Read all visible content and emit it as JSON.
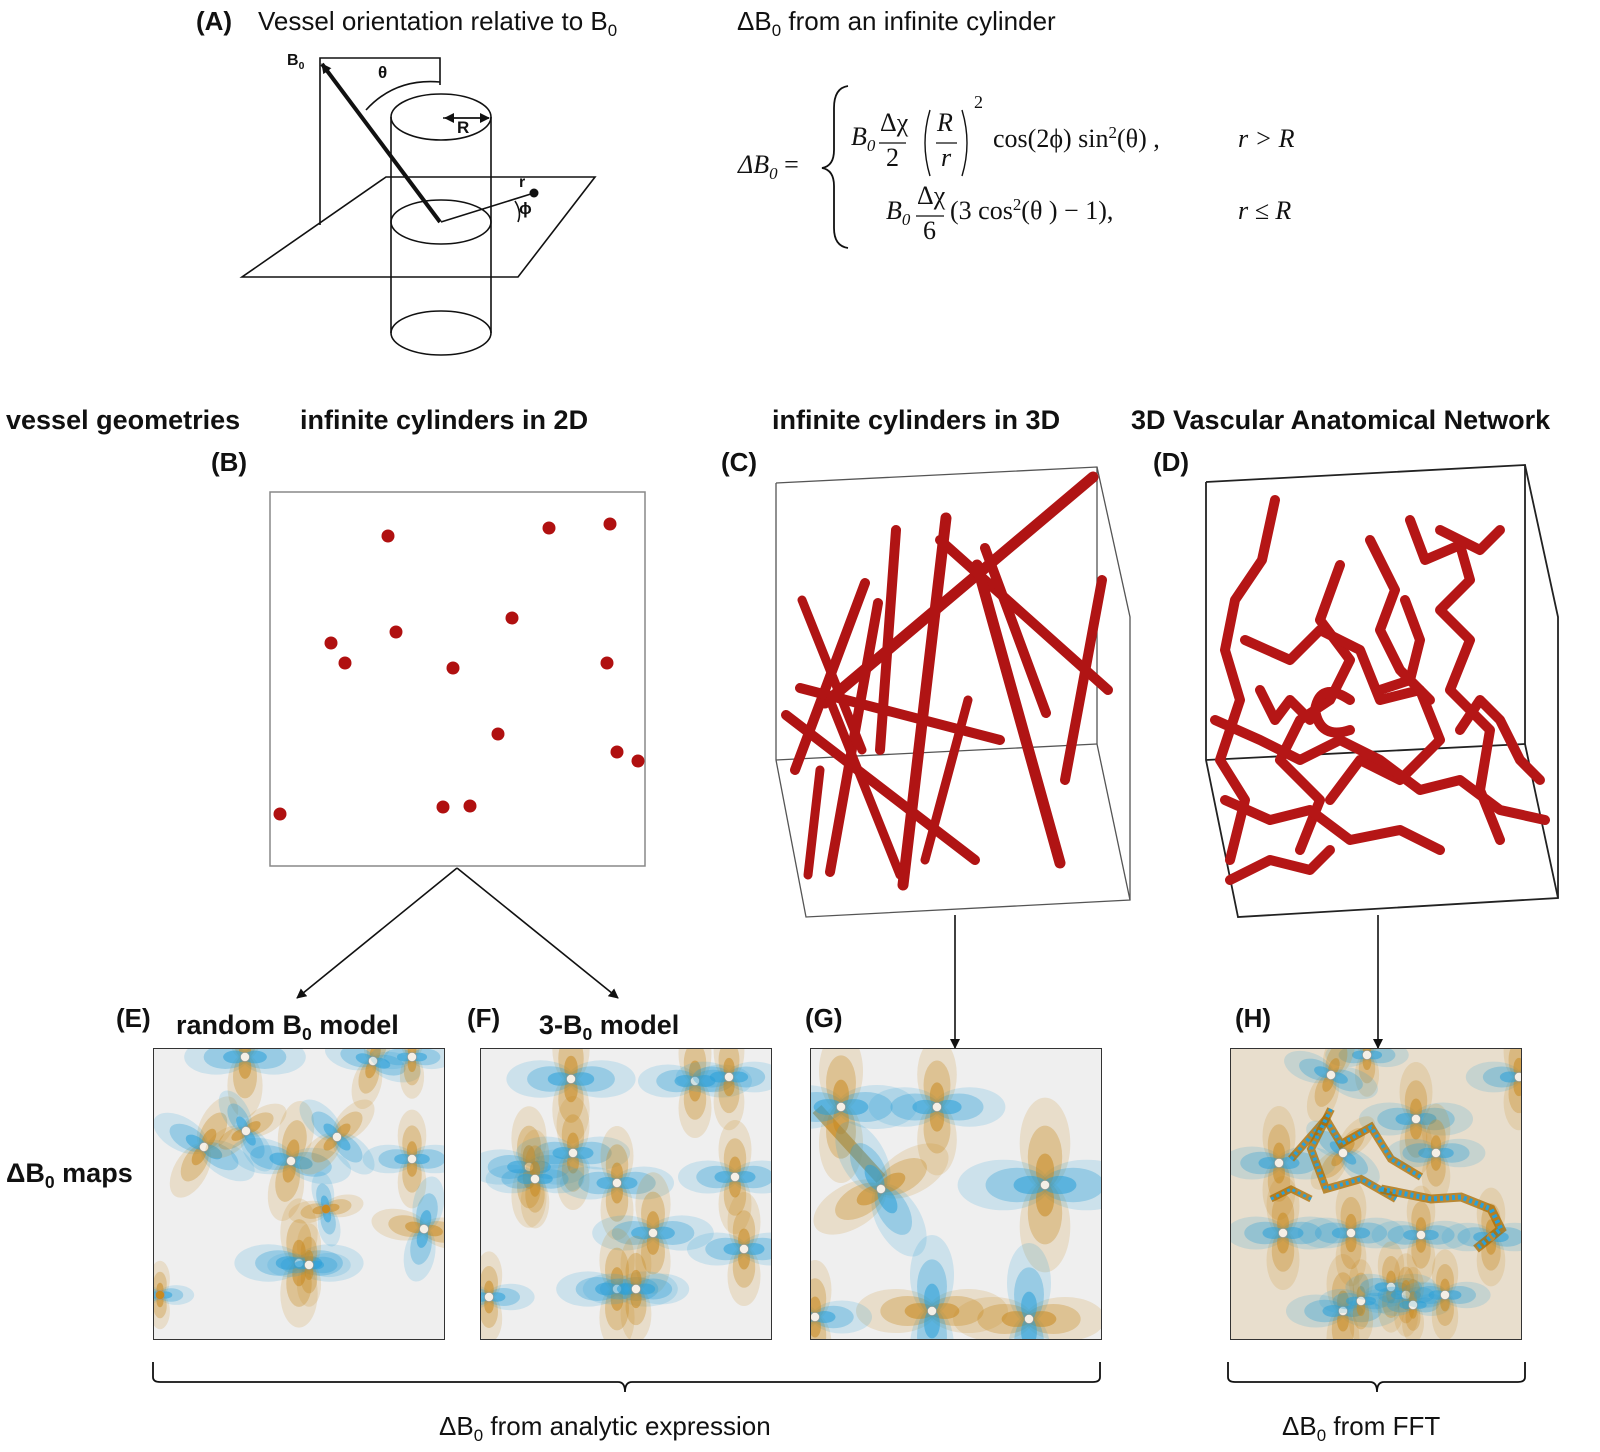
{
  "panelA": {
    "letter": "(A)",
    "title_left": "Vessel orientation relative to B",
    "title_left_sub": "0",
    "title_right": "ΔB",
    "title_right_sub": "0",
    "title_right_tail": " from an infinite cylinder",
    "diagram_labels": {
      "B0": "B",
      "B0_sub": "0",
      "theta": "θ",
      "R": "R",
      "r": "r",
      "phi": "ϕ"
    }
  },
  "equation": {
    "lhs": "ΔB",
    "lhs_sub": "0",
    "eq": "=",
    "row1": {
      "B0": "B",
      "sub": "0",
      "frac_num": "Δχ",
      "frac_den": "2",
      "inner_num": "R",
      "inner_den": "r",
      "exp": "2",
      "tail": "cos(2ϕ) sin",
      "tail_exp": "2",
      "tail_end": "(θ) ,",
      "cond": "r > R"
    },
    "row2": {
      "B0": "B",
      "sub": "0",
      "frac_num": "Δχ",
      "frac_den": "6",
      "tail": "(3 cos",
      "tail_exp": "2",
      "tail_end": "(θ ) − 1),",
      "cond": "r ≤ R"
    }
  },
  "section_labels": {
    "vessel_geometries": "vessel geometries",
    "cyl2d": "infinite cylinders in 2D",
    "cyl3d": "infinite cylinders in 3D",
    "van": "3D Vascular Anatomical Network",
    "B": "(B)",
    "C": "(C)",
    "D": "(D)"
  },
  "maps": {
    "row_label": "ΔB",
    "row_label_sub": "0",
    "row_label_tail": " maps",
    "E": {
      "letter": "(E)",
      "title": "random B",
      "sub": "0",
      "tail": " model"
    },
    "F": {
      "letter": "(F)",
      "title": "3-B",
      "sub": "0",
      "tail": " model"
    },
    "G": {
      "letter": "(G)"
    },
    "H": {
      "letter": "(H)"
    }
  },
  "braces": {
    "analytic": "ΔB",
    "analytic_sub": "0",
    "analytic_tail": " from analytic expression",
    "fft": "ΔB",
    "fft_sub": "0",
    "fft_tail": " from FFT"
  },
  "colors": {
    "vessel_red": "#b01010",
    "field_blue": "#2aa0d8",
    "field_orange": "#c88a20",
    "map_background": "#efefef"
  }
}
